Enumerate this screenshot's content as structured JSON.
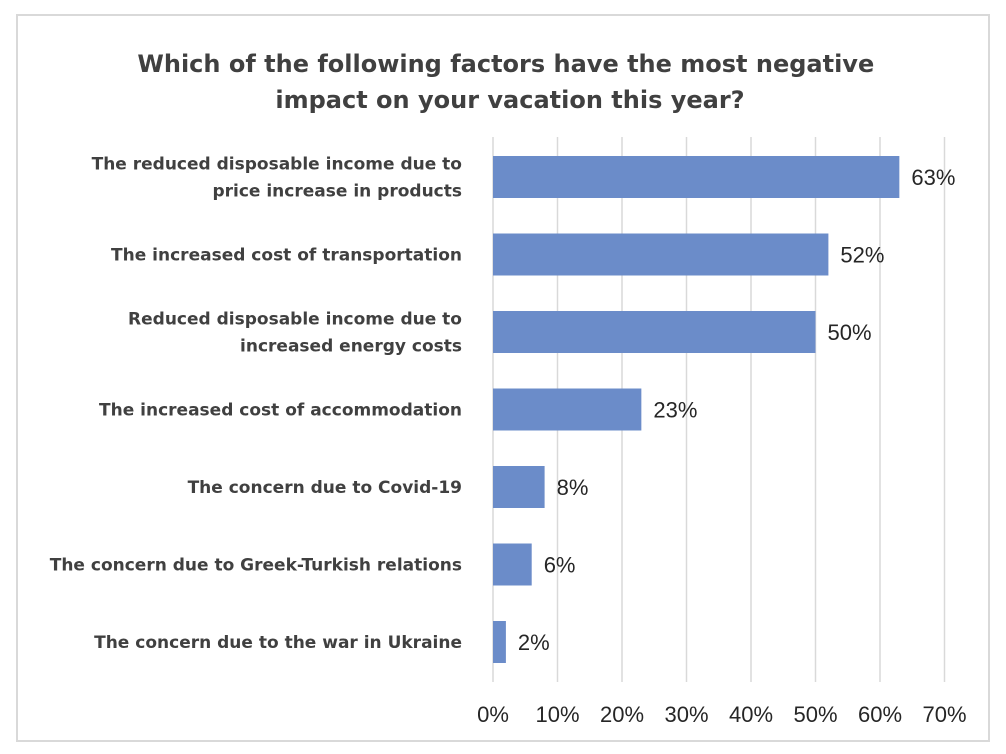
{
  "chart_data": {
    "type": "bar",
    "orientation": "horizontal",
    "title": [
      "Which of the following factors have the most negative",
      "impact on your vacation this year?"
    ],
    "categories": [
      [
        "The reduced disposable income due to",
        "price increase in products"
      ],
      [
        "The increased cost of transportation"
      ],
      [
        "Reduced disposable income due to",
        "increased energy costs"
      ],
      [
        "The increased cost of accommodation"
      ],
      [
        "The concern due to Covid-19"
      ],
      [
        "The concern due to Greek-Turkish relations"
      ],
      [
        "The concern due to the war in Ukraine"
      ]
    ],
    "values": [
      63,
      52,
      50,
      23,
      8,
      6,
      2
    ],
    "value_labels": [
      "63%",
      "52%",
      "50%",
      "23%",
      "8%",
      "6%",
      "2%"
    ],
    "xlim": [
      0,
      70
    ],
    "x_ticks": [
      "0%",
      "10%",
      "20%",
      "30%",
      "40%",
      "50%",
      "60%",
      "70%"
    ],
    "bar_color": "#6b8cc9",
    "grid": "vertical"
  }
}
